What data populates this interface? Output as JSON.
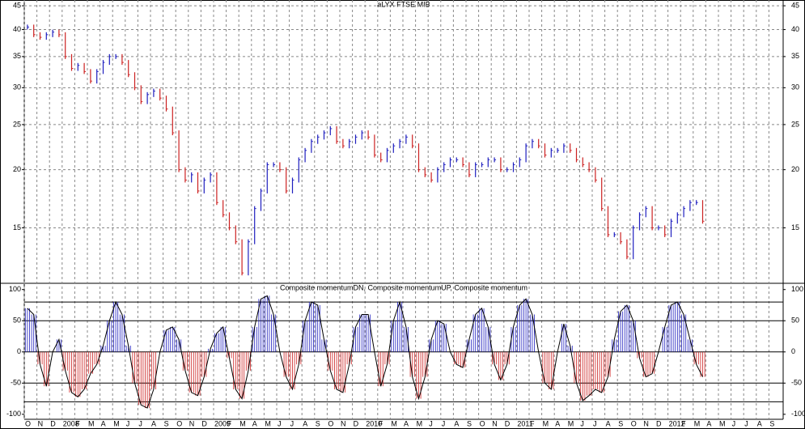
{
  "chart_data": [
    {
      "type": "price-bar",
      "title": "aLYX FTSE MIB",
      "log_scale": true,
      "grid": true,
      "up_color": "#1f1fbf",
      "down_color": "#cc2222",
      "x_labels": [
        "O",
        "N",
        "D",
        "2008",
        "F",
        "M",
        "A",
        "M",
        "J",
        "J",
        "A",
        "S",
        "O",
        "N",
        "D",
        "2009",
        "F",
        "M",
        "A",
        "M",
        "J",
        "J",
        "A",
        "S",
        "O",
        "N",
        "D",
        "2010",
        "F",
        "M",
        "A",
        "M",
        "J",
        "J",
        "A",
        "S",
        "O",
        "N",
        "D",
        "2011",
        "F",
        "M",
        "A",
        "M",
        "J",
        "J",
        "A",
        "S",
        "O",
        "N",
        "D",
        "2012",
        "F",
        "M",
        "A",
        "M",
        "J",
        "J",
        "A",
        "S"
      ],
      "values": [
        40.5,
        39,
        38.5,
        39,
        39.5,
        39,
        35,
        33,
        33.5,
        32.5,
        31,
        32.5,
        34,
        35,
        35,
        34,
        32,
        30,
        28,
        29,
        29.5,
        28.5,
        27,
        24,
        20,
        19,
        19.5,
        18,
        19,
        19.5,
        17,
        16,
        15,
        14,
        12,
        14,
        16.5,
        18,
        20.5,
        20.5,
        20,
        18,
        19,
        21,
        22,
        23,
        23.5,
        24,
        24.5,
        23,
        22.5,
        23,
        23.5,
        24,
        23.5,
        21.5,
        21,
        22,
        22.5,
        23,
        23.5,
        22.5,
        20,
        19.5,
        19,
        20,
        20.5,
        21,
        21,
        20.5,
        19.5,
        20.5,
        20.5,
        21,
        21,
        20,
        20,
        20.5,
        21,
        22.5,
        23,
        22.5,
        21.5,
        22,
        22,
        22.5,
        22,
        21,
        20.5,
        20,
        19,
        16.5,
        14.5,
        14.5,
        14,
        13,
        15,
        16,
        16.5,
        15,
        15,
        14.5,
        15.5,
        16,
        16.5,
        17,
        17,
        15.5
      ],
      "ylim": [
        11.4,
        46.3
      ],
      "yticks": [
        15,
        20,
        25,
        30,
        35,
        40,
        45
      ]
    },
    {
      "type": "oscillator",
      "title": "Composite momentumDN, Composite momentumUP, Composite momentum",
      "up_color": "#1f1fbf",
      "down_color": "#cc2222",
      "line_color": "#000000",
      "values": [
        70,
        60,
        -20,
        -55,
        0,
        20,
        -30,
        -65,
        -72,
        -60,
        -35,
        -20,
        10,
        50,
        80,
        60,
        10,
        -50,
        -85,
        -90,
        -60,
        0,
        35,
        40,
        20,
        -30,
        -65,
        -70,
        -40,
        5,
        30,
        40,
        -10,
        -60,
        -75,
        -30,
        40,
        85,
        90,
        60,
        0,
        -40,
        -60,
        -20,
        50,
        80,
        75,
        20,
        -30,
        -60,
        -65,
        -20,
        40,
        60,
        60,
        0,
        -55,
        -20,
        50,
        80,
        40,
        -40,
        -75,
        -40,
        20,
        50,
        45,
        0,
        -20,
        -25,
        20,
        60,
        70,
        40,
        -20,
        -45,
        -20,
        40,
        75,
        85,
        60,
        0,
        -50,
        -60,
        0,
        45,
        10,
        -50,
        -78,
        -70,
        -60,
        -65,
        -40,
        20,
        65,
        75,
        50,
        -10,
        -40,
        -35,
        0,
        40,
        75,
        80,
        60,
        20,
        -20,
        -40
      ],
      "levels": [
        80,
        50,
        0,
        -50,
        -80
      ],
      "ylim": [
        -108,
        110
      ],
      "yticks": [
        100,
        50,
        0,
        -50,
        -100
      ]
    }
  ]
}
